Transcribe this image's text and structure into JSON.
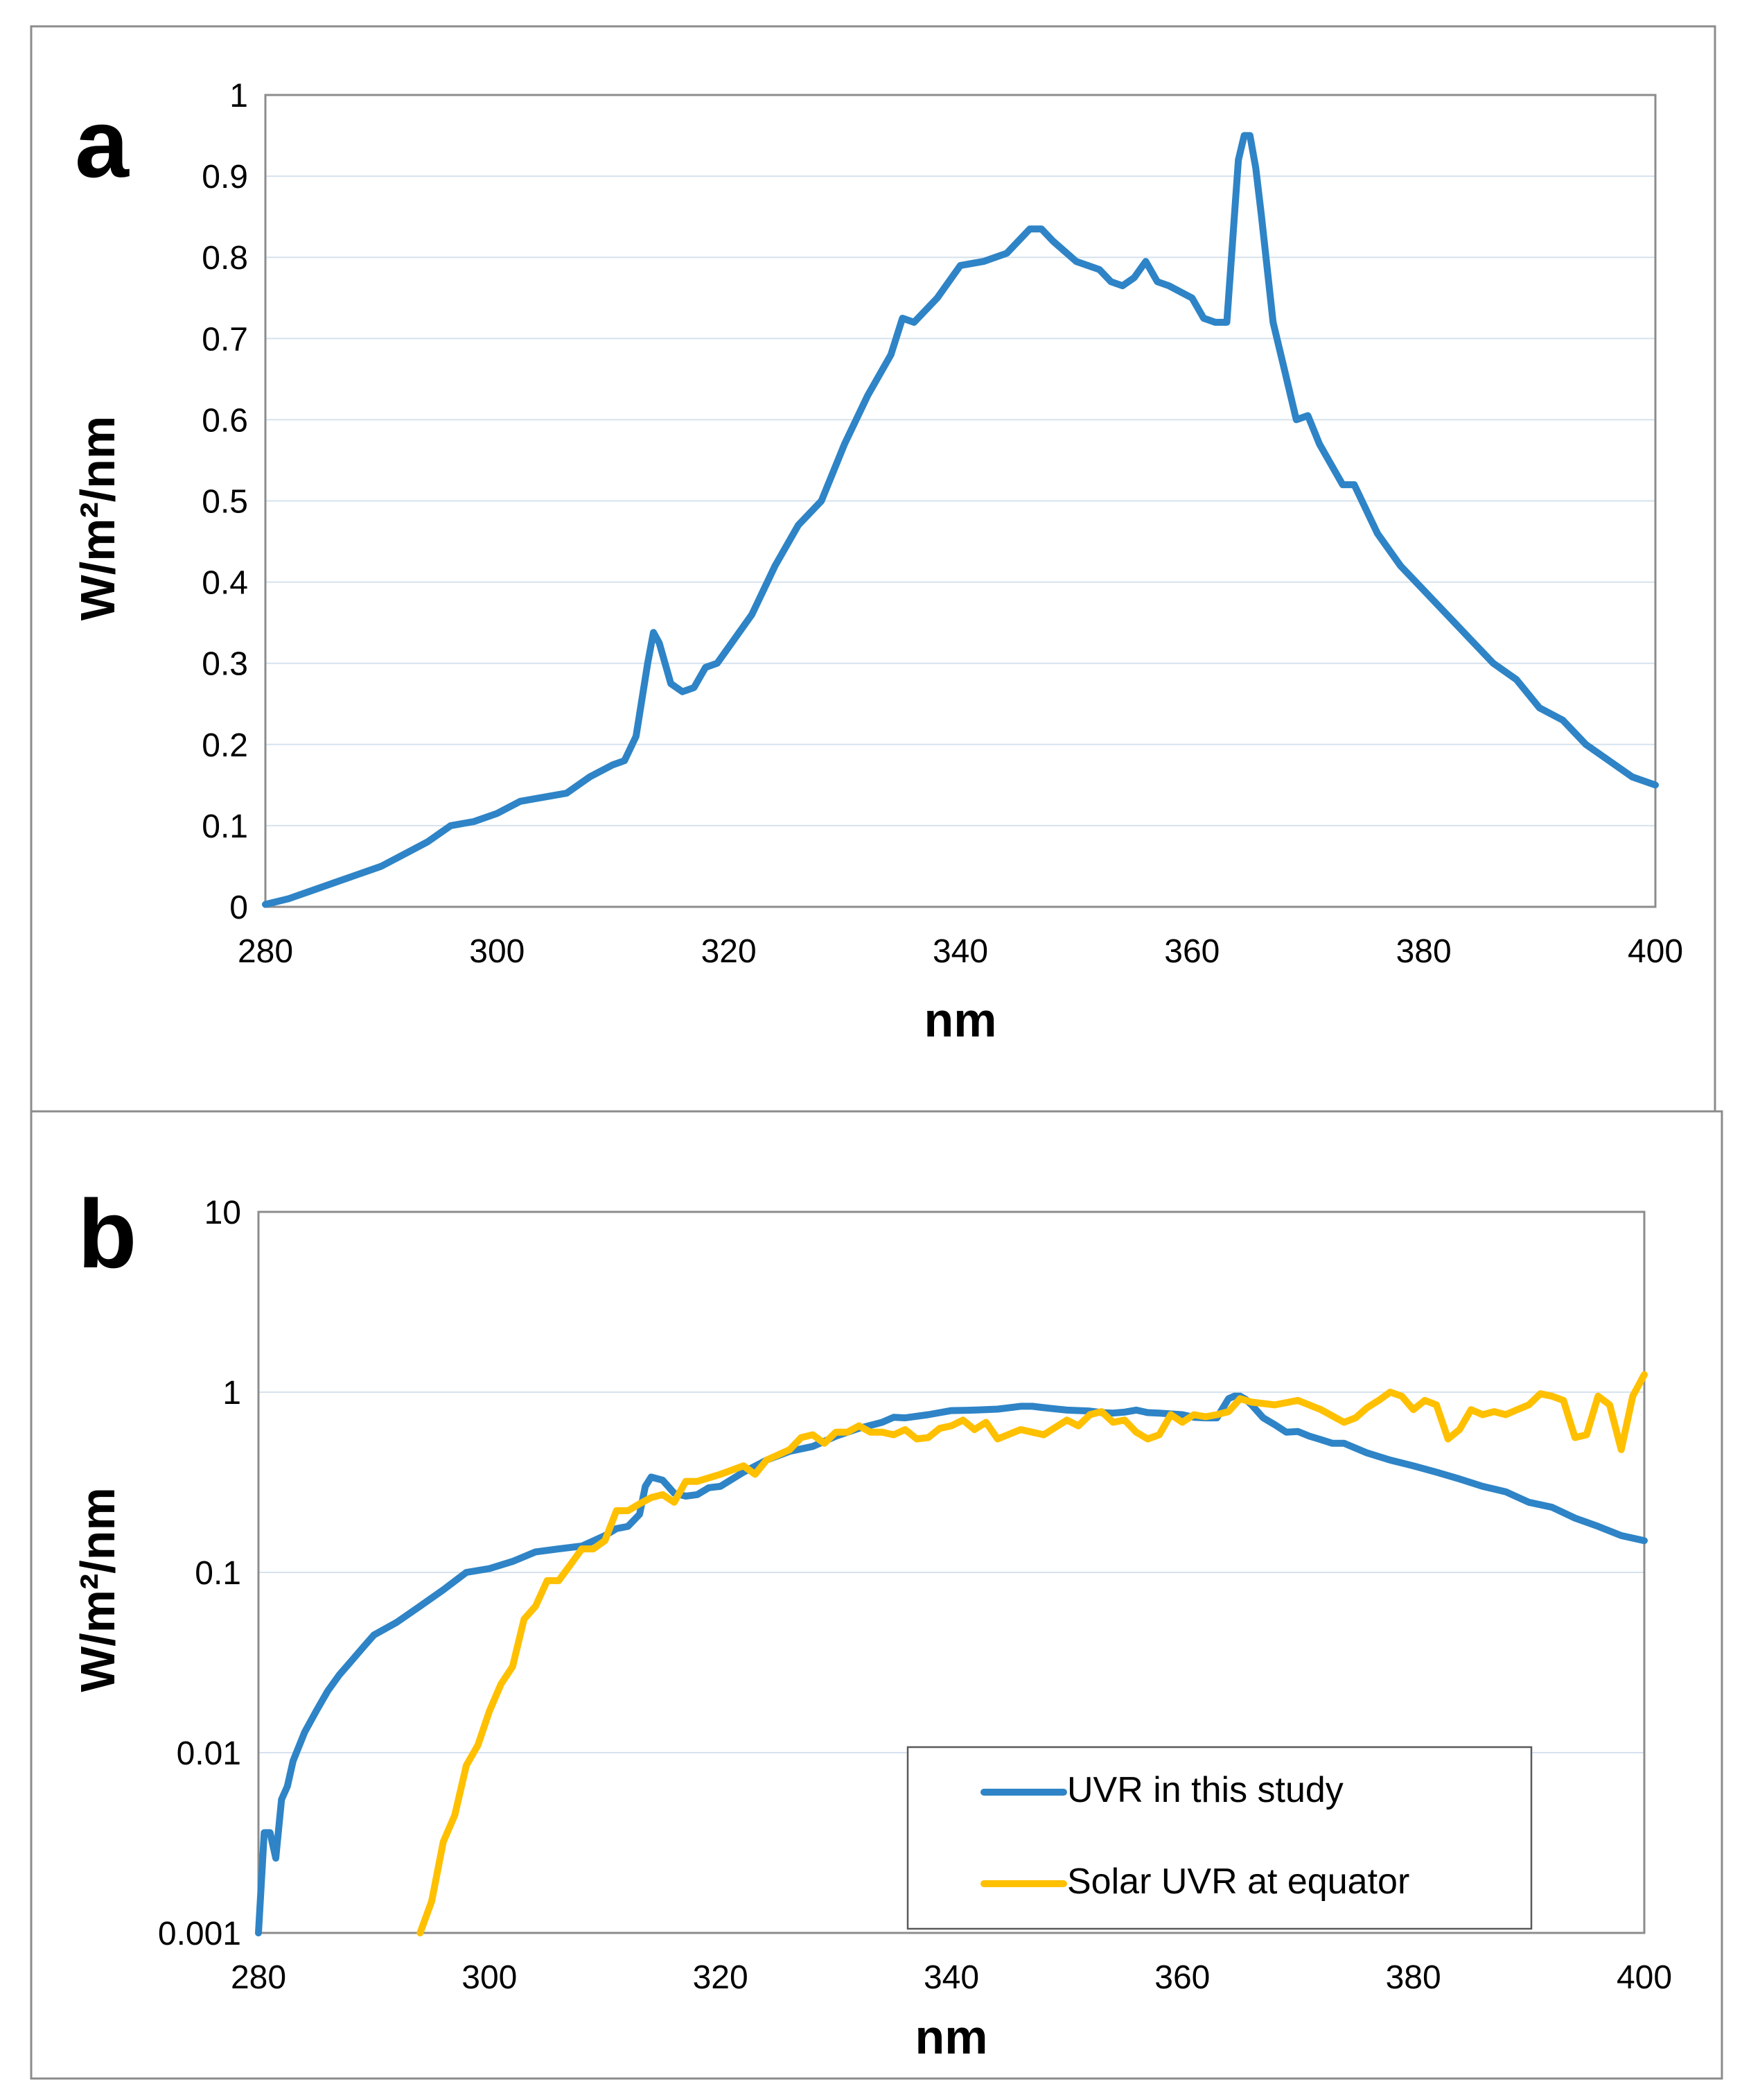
{
  "chart_data": [
    {
      "panel": "a",
      "type": "line",
      "scale": "linear",
      "xlabel": "nm",
      "ylabel": "W/m²/nm",
      "xlim": [
        280,
        400
      ],
      "ylim": [
        0,
        1
      ],
      "x_ticks": [
        280,
        300,
        320,
        340,
        360,
        380,
        400
      ],
      "y_ticks": [
        0,
        0.1,
        0.2,
        0.3,
        0.4,
        0.5,
        0.6,
        0.7,
        0.8,
        0.9,
        1
      ],
      "y_tick_labels": [
        "0",
        "0.1",
        "0.2",
        "0.3",
        "0.4",
        "0.5",
        "0.6",
        "0.7",
        "0.8",
        "0.9",
        "1"
      ],
      "grid": "horizontal",
      "series": [
        {
          "name": "UVR in this study",
          "color": "#2E84C6",
          "x": [
            280,
            282,
            284,
            286,
            288,
            290,
            292,
            294,
            296,
            298,
            300,
            302,
            304,
            306,
            308,
            310,
            311,
            312,
            313,
            313.5,
            314,
            315,
            316,
            317,
            318,
            319,
            320,
            322,
            324,
            326,
            328,
            330,
            332,
            334,
            335,
            336,
            338,
            340,
            342,
            344,
            346,
            347,
            348,
            350,
            352,
            353,
            354,
            355,
            356,
            357,
            358,
            360,
            361,
            362,
            363,
            364,
            364.5,
            365,
            365.5,
            366,
            367,
            368,
            369,
            370,
            371,
            372,
            373,
            374,
            376,
            378,
            380,
            382,
            384,
            386,
            388,
            390,
            392,
            394,
            396,
            398,
            400
          ],
          "values": [
            0.003,
            0.01,
            0.02,
            0.03,
            0.04,
            0.05,
            0.065,
            0.08,
            0.1,
            0.105,
            0.115,
            0.13,
            0.135,
            0.14,
            0.16,
            0.175,
            0.18,
            0.21,
            0.3,
            0.338,
            0.325,
            0.275,
            0.265,
            0.27,
            0.295,
            0.3,
            0.32,
            0.36,
            0.42,
            0.47,
            0.5,
            0.57,
            0.63,
            0.68,
            0.725,
            0.72,
            0.75,
            0.79,
            0.795,
            0.805,
            0.835,
            0.835,
            0.82,
            0.795,
            0.785,
            0.77,
            0.765,
            0.775,
            0.795,
            0.77,
            0.765,
            0.75,
            0.725,
            0.72,
            0.72,
            0.92,
            0.95,
            0.95,
            0.91,
            0.85,
            0.72,
            0.66,
            0.6,
            0.605,
            0.57,
            0.545,
            0.52,
            0.52,
            0.46,
            0.42,
            0.39,
            0.36,
            0.33,
            0.3,
            0.28,
            0.245,
            0.23,
            0.2,
            0.18,
            0.16,
            0.15
          ]
        }
      ]
    },
    {
      "panel": "b",
      "type": "line",
      "scale": "log",
      "xlabel": "nm",
      "ylabel": "W/m²/nm",
      "xlim": [
        280,
        400
      ],
      "ylim": [
        0.001,
        10
      ],
      "x_ticks": [
        280,
        300,
        320,
        340,
        360,
        380,
        400
      ],
      "y_ticks": [
        0.001,
        0.01,
        0.1,
        1,
        10
      ],
      "y_tick_labels": [
        "0.001",
        "0.01",
        "0.1",
        "1",
        "10"
      ],
      "grid": "horizontal",
      "legend_position": "bottom-right",
      "series": [
        {
          "name": "UVR in this study",
          "color": "#2E84C6",
          "x": [
            280,
            280.5,
            281,
            281.5,
            282,
            282.5,
            283,
            284,
            285,
            286,
            287,
            288,
            289,
            290,
            292,
            294,
            296,
            298,
            300,
            302,
            304,
            306,
            308,
            310,
            311,
            312,
            313,
            313.5,
            314,
            315,
            316,
            317,
            318,
            319,
            320,
            322,
            324,
            326,
            328,
            330,
            332,
            334,
            335,
            336,
            338,
            340,
            342,
            344,
            346,
            347,
            348,
            350,
            352,
            353,
            354,
            355,
            356,
            357,
            358,
            360,
            361,
            362,
            363,
            364,
            364.5,
            365,
            365.5,
            366,
            367,
            368,
            369,
            370,
            371,
            372,
            373,
            374,
            376,
            378,
            380,
            382,
            384,
            386,
            388,
            390,
            392,
            394,
            396,
            398,
            400
          ],
          "values": [
            0.001,
            0.0036,
            0.0036,
            0.0026,
            0.0055,
            0.0065,
            0.009,
            0.013,
            0.017,
            0.022,
            0.027,
            0.032,
            0.038,
            0.045,
            0.053,
            0.065,
            0.08,
            0.1,
            0.105,
            0.115,
            0.13,
            0.135,
            0.14,
            0.16,
            0.175,
            0.18,
            0.21,
            0.3,
            0.338,
            0.325,
            0.275,
            0.265,
            0.27,
            0.295,
            0.3,
            0.36,
            0.42,
            0.47,
            0.5,
            0.57,
            0.63,
            0.68,
            0.725,
            0.72,
            0.75,
            0.79,
            0.795,
            0.805,
            0.835,
            0.835,
            0.82,
            0.795,
            0.785,
            0.77,
            0.765,
            0.775,
            0.795,
            0.77,
            0.765,
            0.75,
            0.725,
            0.72,
            0.72,
            0.92,
            0.95,
            0.95,
            0.91,
            0.85,
            0.72,
            0.66,
            0.6,
            0.605,
            0.57,
            0.545,
            0.52,
            0.52,
            0.46,
            0.42,
            0.39,
            0.36,
            0.33,
            0.3,
            0.28,
            0.245,
            0.23,
            0.2,
            0.18,
            0.16,
            0.15
          ]
        },
        {
          "name": "Solar UVR at equator",
          "color": "#FFC000",
          "x": [
            294,
            295,
            296,
            297,
            298,
            299,
            300,
            301,
            302,
            303,
            304,
            305,
            306,
            307,
            308,
            309,
            310,
            311,
            312,
            313,
            314,
            315,
            316,
            317,
            318,
            320,
            322,
            323,
            324,
            326,
            327,
            328,
            329,
            330,
            331,
            332,
            333,
            334,
            335,
            336,
            337,
            338,
            339,
            340,
            341,
            342,
            343,
            344,
            346,
            348,
            350,
            351,
            352,
            353,
            354,
            355,
            356,
            357,
            358,
            359,
            360,
            361,
            362,
            363,
            364,
            365,
            366,
            368,
            370,
            372,
            374,
            375,
            376,
            377,
            378,
            379,
            380,
            381,
            382,
            383,
            384,
            385,
            386,
            387,
            388,
            389,
            390,
            391,
            392,
            393,
            394,
            395,
            396,
            397,
            398,
            399,
            400
          ],
          "values": [
            0.0009,
            0.0015,
            0.0032,
            0.0045,
            0.0085,
            0.011,
            0.017,
            0.024,
            0.03,
            0.055,
            0.065,
            0.09,
            0.09,
            0.11,
            0.135,
            0.135,
            0.15,
            0.22,
            0.22,
            0.24,
            0.26,
            0.27,
            0.245,
            0.32,
            0.32,
            0.35,
            0.39,
            0.35,
            0.42,
            0.48,
            0.56,
            0.58,
            0.52,
            0.6,
            0.6,
            0.65,
            0.6,
            0.6,
            0.58,
            0.62,
            0.55,
            0.56,
            0.63,
            0.65,
            0.7,
            0.62,
            0.68,
            0.55,
            0.62,
            0.58,
            0.7,
            0.65,
            0.75,
            0.78,
            0.68,
            0.7,
            0.6,
            0.55,
            0.58,
            0.75,
            0.68,
            0.75,
            0.73,
            0.75,
            0.78,
            0.92,
            0.88,
            0.85,
            0.9,
            0.8,
            0.68,
            0.72,
            0.82,
            0.9,
            1.0,
            0.95,
            0.8,
            0.9,
            0.85,
            0.55,
            0.62,
            0.8,
            0.75,
            0.78,
            0.75,
            0.8,
            0.85,
            0.98,
            0.95,
            0.9,
            0.56,
            0.58,
            0.95,
            0.85,
            0.48,
            0.95,
            1.25
          ]
        }
      ]
    }
  ]
}
